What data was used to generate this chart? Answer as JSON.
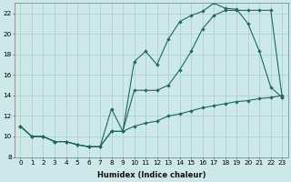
{
  "xlabel": "Humidex (Indice chaleur)",
  "bg_color": "#cce8e8",
  "grid_color": "#b0d0d0",
  "line_color": "#1a6b5a",
  "line1_x": [
    0,
    1,
    2,
    3,
    4,
    5,
    6,
    7,
    8,
    9,
    10,
    11,
    12,
    13,
    14,
    15,
    16,
    17,
    18,
    19,
    20,
    21,
    22,
    23
  ],
  "line1_y": [
    11,
    10,
    10,
    9.5,
    9.5,
    9.2,
    9.0,
    9.0,
    12.7,
    10.5,
    17.3,
    18.3,
    17.0,
    19.5,
    21.2,
    21.8,
    22.2,
    23.0,
    22.5,
    22.4,
    21.0,
    18.3,
    14.8,
    13.8
  ],
  "line2_x": [
    0,
    1,
    2,
    3,
    4,
    5,
    6,
    7,
    8,
    9,
    10,
    11,
    12,
    13,
    14,
    15,
    16,
    17,
    18,
    19,
    20,
    21,
    22,
    23
  ],
  "line2_y": [
    11,
    10,
    10,
    9.5,
    9.5,
    9.2,
    9.0,
    9.0,
    10.5,
    10.5,
    14.5,
    14.5,
    14.5,
    15.0,
    16.5,
    18.3,
    20.5,
    21.8,
    22.3,
    22.3,
    22.3,
    22.3,
    22.3,
    13.8
  ],
  "line3_x": [
    0,
    1,
    2,
    3,
    4,
    5,
    6,
    7,
    8,
    9,
    10,
    11,
    12,
    13,
    14,
    15,
    16,
    17,
    18,
    19,
    20,
    21,
    22,
    23
  ],
  "line3_y": [
    11,
    10,
    10,
    9.5,
    9.5,
    9.2,
    9.0,
    9.0,
    10.5,
    10.5,
    11.0,
    11.3,
    11.5,
    12.0,
    12.2,
    12.5,
    12.8,
    13.0,
    13.2,
    13.4,
    13.5,
    13.7,
    13.8,
    14.0
  ],
  "xlim": [
    -0.5,
    23.5
  ],
  "ylim": [
    8,
    23
  ],
  "yticks": [
    8,
    10,
    12,
    14,
    16,
    18,
    20,
    22
  ],
  "xticks": [
    0,
    1,
    2,
    3,
    4,
    5,
    6,
    7,
    8,
    9,
    10,
    11,
    12,
    13,
    14,
    15,
    16,
    17,
    18,
    19,
    20,
    21,
    22,
    23
  ],
  "tick_fontsize": 5.2,
  "xlabel_fontsize": 6.0
}
